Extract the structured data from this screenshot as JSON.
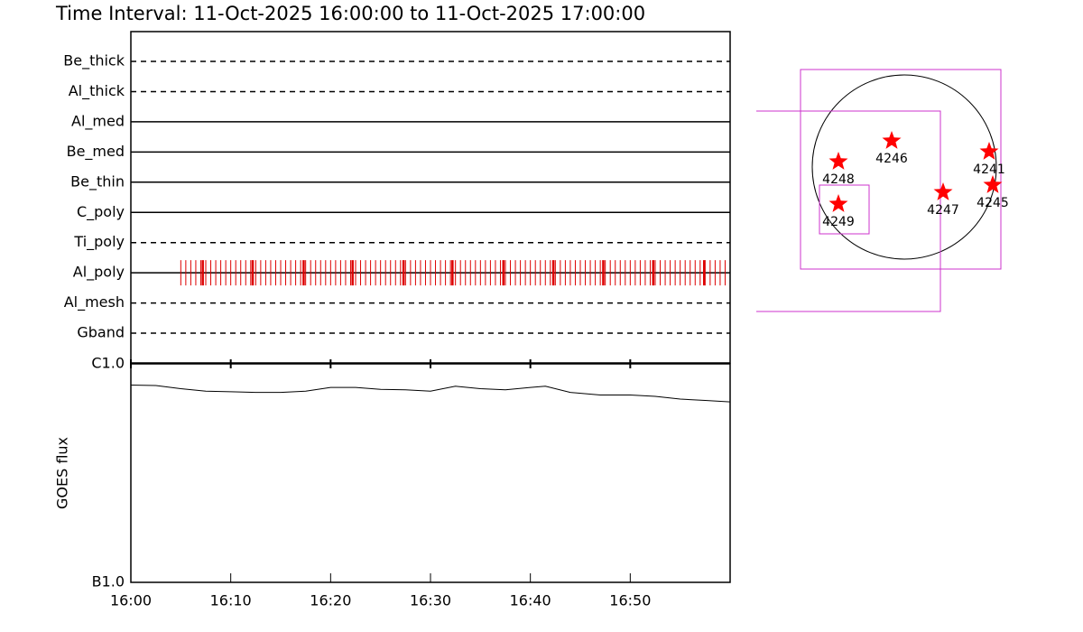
{
  "chart_data": [
    {
      "type": "timeline",
      "title": "Time Interval: 11-Oct-2025 16:00:00 to 11-Oct-2025 17:00:00",
      "categories": [
        "Be_thick",
        "Al_thick",
        "Al_med",
        "Be_med",
        "Be_thin",
        "C_poly",
        "Ti_poly",
        "Al_poly",
        "Al_mesh",
        "Gband"
      ],
      "styles": [
        "dashed",
        "dashed",
        "solid",
        "solid",
        "solid",
        "solid",
        "dashed",
        "solid",
        "dashed",
        "dashed"
      ],
      "xlim": [
        0,
        60
      ],
      "color": "#dd0000",
      "exposure_row": 7,
      "exposures": [
        5,
        5.5,
        6,
        6.5,
        7,
        7.5,
        8,
        8.5,
        9,
        9.5,
        10,
        10.5,
        11,
        11.5,
        12,
        12.5,
        13,
        13.5,
        14,
        14.5,
        15,
        15.5,
        16,
        16.5,
        17,
        17.5,
        18,
        18.5,
        19,
        19.5,
        20,
        20.5,
        21,
        21.5,
        22,
        22.5,
        23,
        23.5,
        24,
        24.5,
        25,
        25.5,
        26,
        26.5,
        27,
        27.5,
        28,
        28.5,
        29,
        29.5,
        30,
        30.5,
        31,
        31.5,
        32,
        32.5,
        33,
        33.5,
        34,
        34.5,
        35,
        35.5,
        36,
        36.5,
        37,
        37.5,
        38,
        38.5,
        39,
        39.5,
        40,
        40.5,
        41,
        41.5,
        42,
        42.5,
        43,
        43.5,
        44,
        44.5,
        45,
        45.5,
        46,
        46.5,
        47,
        47.5,
        48,
        48.5,
        49,
        49.5,
        50,
        50.5,
        51,
        51.5,
        52,
        52.5,
        53,
        53.5,
        54,
        54.5,
        55,
        55.5,
        56,
        56.5,
        57,
        57.5,
        58,
        58.5,
        59,
        59.5
      ],
      "exposures_long": [
        7.2,
        12.2,
        17.3,
        22.2,
        27.3,
        32.2,
        37.3,
        42.3,
        47.3,
        52.3,
        57.4
      ]
    },
    {
      "type": "line",
      "ylabel": "GOES flux",
      "x": [
        0,
        2.5,
        5,
        7.5,
        10,
        12.5,
        15,
        17.5,
        20,
        22.5,
        25,
        27.5,
        30,
        32.5,
        35,
        37.5,
        40,
        41.5,
        44,
        47,
        50,
        52.5,
        55,
        57.5,
        60
      ],
      "values": [
        8e-07,
        7.96e-07,
        7.7e-07,
        7.5e-07,
        7.45e-07,
        7.4e-07,
        7.4e-07,
        7.5e-07,
        7.8e-07,
        7.8e-07,
        7.65e-07,
        7.6e-07,
        7.5e-07,
        7.9e-07,
        7.7e-07,
        7.6e-07,
        7.8e-07,
        7.9e-07,
        7.4e-07,
        7.2e-07,
        7.2e-07,
        7.1e-07,
        6.9e-07,
        6.8e-07,
        6.7e-07
      ],
      "color": "#000000",
      "log_scale": true,
      "ylim": [
        1e-07,
        1e-06
      ],
      "yticks": [
        {
          "value": 1e-07,
          "label": "B1.0"
        },
        {
          "value": 1e-06,
          "label": "C1.0"
        }
      ],
      "xlim": [
        0,
        60
      ],
      "xticks": [
        {
          "value": 0,
          "label": "16:00"
        },
        {
          "value": 10,
          "label": "16:10"
        },
        {
          "value": 20,
          "label": "16:20"
        },
        {
          "value": 30,
          "label": "16:30"
        },
        {
          "value": 40,
          "label": "16:40"
        },
        {
          "value": 50,
          "label": "16:50"
        }
      ]
    },
    {
      "type": "map",
      "color": "#cc33cc",
      "star_color": "#ff0000",
      "regions": [
        "4248",
        "4246",
        "4241",
        "4245",
        "4247",
        "4249"
      ]
    }
  ]
}
